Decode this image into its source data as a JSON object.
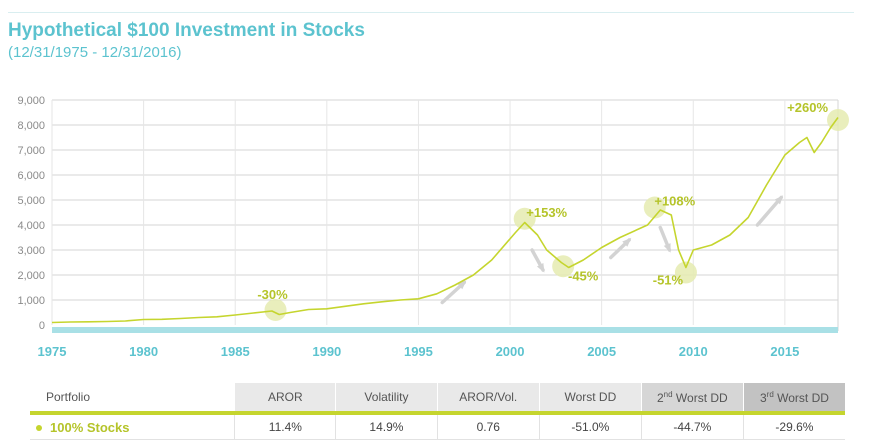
{
  "header": {
    "title": "Hypothetical $100 Investment in Stocks",
    "subtitle": "(12/31/1975 - 12/31/2016)"
  },
  "chart_data": {
    "type": "line",
    "title": "Hypothetical $100 Investment in Stocks",
    "subtitle": "(12/31/1975 - 12/31/2016)",
    "xlabel": "",
    "ylabel": "",
    "xlim": [
      1975,
      2017.9
    ],
    "ylim": [
      0,
      9000
    ],
    "x_ticks": [
      1975,
      1980,
      1985,
      1990,
      1995,
      2000,
      2005,
      2010,
      2015
    ],
    "y_ticks": [
      0,
      1000,
      2000,
      3000,
      4000,
      5000,
      6000,
      7000,
      8000,
      9000
    ],
    "y_tick_labels": [
      "0",
      "1,000",
      "2,000",
      "3,000",
      "4,000",
      "5,000",
      "6,000",
      "7,000",
      "8,000",
      "9,000"
    ],
    "grid": true,
    "line_color": "#c5d52e",
    "series": [
      {
        "name": "100% Stocks",
        "x": [
          1975,
          1976,
          1977,
          1978,
          1979,
          1980,
          1981,
          1982,
          1983,
          1984,
          1985,
          1986,
          1987,
          1987.4,
          1988,
          1989,
          1990,
          1991,
          1992,
          1993,
          1994,
          1995,
          1996,
          1997,
          1998,
          1999,
          2000.3,
          2000.8,
          2001.5,
          2002,
          2002.8,
          2003.2,
          2004,
          2005,
          2006,
          2007.5,
          2008.2,
          2008.8,
          2009.2,
          2009.6,
          2010,
          2011,
          2012,
          2013,
          2014,
          2015,
          2015.8,
          2016.2,
          2016.6,
          2017,
          2017.5,
          2017.9
        ],
        "values": [
          100,
          120,
          130,
          140,
          160,
          220,
          230,
          260,
          300,
          330,
          400,
          480,
          560,
          420,
          500,
          620,
          650,
          750,
          850,
          930,
          1000,
          1050,
          1250,
          1600,
          2000,
          2600,
          3700,
          4100,
          3600,
          3000,
          2500,
          2300,
          2600,
          3100,
          3500,
          4000,
          4600,
          4400,
          3000,
          2300,
          3000,
          3200,
          3600,
          4300,
          5600,
          6800,
          7300,
          7500,
          6900,
          7300,
          7900,
          8300
        ]
      }
    ],
    "annotations": [
      {
        "text": "-30%",
        "x": 1987.2,
        "y": 600
      },
      {
        "text": "+153%",
        "x": 2000.8,
        "y": 4250
      },
      {
        "text": "-45%",
        "x": 2002.9,
        "y": 2350
      },
      {
        "text": "+108%",
        "x": 2007.9,
        "y": 4700
      },
      {
        "text": "-51%",
        "x": 2009.6,
        "y": 2100
      },
      {
        "text": "+260%",
        "x": 2017.9,
        "y": 8200
      }
    ],
    "trend_arrows": [
      {
        "direction": "up",
        "x1": 1996.3,
        "y1": 900,
        "x2": 1997.5,
        "y2": 1700
      },
      {
        "direction": "down",
        "x1": 2001.2,
        "y1": 3000,
        "x2": 2001.8,
        "y2": 2200
      },
      {
        "direction": "up",
        "x1": 2005.5,
        "y1": 2700,
        "x2": 2006.5,
        "y2": 3400
      },
      {
        "direction": "down",
        "x1": 2008.2,
        "y1": 3900,
        "x2": 2008.7,
        "y2": 3000
      },
      {
        "direction": "up",
        "x1": 2013.5,
        "y1": 4000,
        "x2": 2014.8,
        "y2": 5100
      }
    ]
  },
  "table": {
    "headers": {
      "portfolio": "Portfolio",
      "aror": "AROR",
      "volatility": "Volatility",
      "aror_vol": "AROR/Vol.",
      "worst_dd": "Worst DD",
      "second_num": "2",
      "second_sup": "nd",
      "second_text": " Worst DD",
      "third_num": "3",
      "third_sup": "rd",
      "third_text": " Worst DD"
    },
    "rows": [
      {
        "name": "100% Stocks",
        "aror": "11.4%",
        "volatility": "14.9%",
        "aror_vol": "0.76",
        "worst_dd": "-51.0%",
        "second_dd": "-44.7%",
        "third_dd": "-29.6%"
      }
    ]
  }
}
